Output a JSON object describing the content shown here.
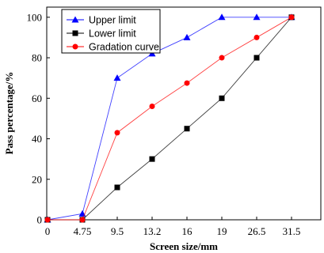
{
  "chart_data": {
    "type": "line",
    "xlabel": "Screen size/mm",
    "ylabel": "Pass percentage/%",
    "categories": [
      "0",
      "4.75",
      "9.5",
      "13.2",
      "16",
      "19",
      "26.5",
      "31.5"
    ],
    "ylim": [
      0,
      105
    ],
    "yticks": [
      0,
      20,
      40,
      60,
      80,
      100
    ],
    "grid": false,
    "legend_position": "top-left",
    "series": [
      {
        "name": "Upper limit",
        "color": "#0000ff",
        "marker": "triangle",
        "values": [
          0,
          3,
          70,
          82,
          90,
          100,
          100,
          100
        ]
      },
      {
        "name": "Lower limit",
        "color": "#000000",
        "marker": "square",
        "values": [
          0,
          0,
          16,
          30,
          45,
          60,
          80,
          100
        ]
      },
      {
        "name": "Gradation curve",
        "color": "#ff0000",
        "marker": "circle",
        "values": [
          0,
          0,
          43,
          56,
          67.5,
          80,
          90,
          100
        ]
      }
    ]
  }
}
